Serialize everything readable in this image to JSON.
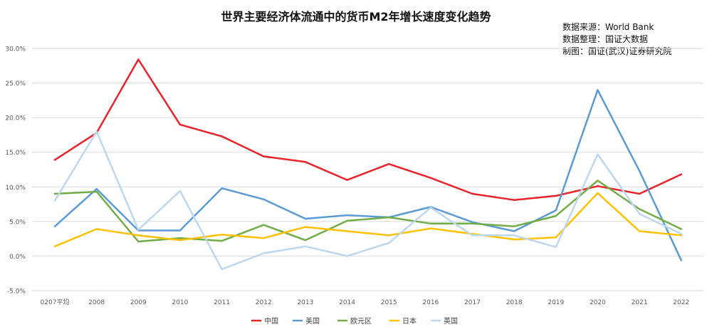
{
  "chart_data": {
    "type": "line",
    "title": "世界主要经济体流通中的货币M2年增长速度变化趋势",
    "notes": [
      "数据来源：World Bank",
      "数据整理：国证大数据",
      "制图：国证(武汉)证券研究院"
    ],
    "categories": [
      "0207平均",
      "2008",
      "2009",
      "2010",
      "2011",
      "2012",
      "2013",
      "2014",
      "2015",
      "2016",
      "2017",
      "2018",
      "2019",
      "2020",
      "2021",
      "2022"
    ],
    "ylim": [
      -5,
      30
    ],
    "yticks": [
      -5,
      0,
      5,
      10,
      15,
      20,
      25,
      30
    ],
    "ytick_labels": [
      "-5.0%",
      "0.0%",
      "5.0%",
      "10.0%",
      "15.0%",
      "20.0%",
      "25.0%",
      "30.0%"
    ],
    "grid": true,
    "legend_position": "bottom",
    "series": [
      {
        "name": "中国",
        "color": "#e8232a",
        "values": [
          13.9,
          17.8,
          28.4,
          19.0,
          17.3,
          14.4,
          13.6,
          11.0,
          13.3,
          11.3,
          9.0,
          8.1,
          8.7,
          10.1,
          9.0,
          11.8
        ]
      },
      {
        "name": "美国",
        "color": "#5b9bd5",
        "values": [
          4.3,
          9.7,
          3.7,
          3.7,
          9.8,
          8.2,
          5.4,
          5.9,
          5.6,
          7.1,
          4.9,
          3.6,
          6.6,
          24.0,
          12.3,
          -0.6
        ]
      },
      {
        "name": "欧元区",
        "color": "#70ad47",
        "values": [
          9.0,
          9.3,
          2.1,
          2.6,
          2.2,
          4.5,
          2.3,
          5.1,
          5.6,
          4.7,
          4.7,
          4.3,
          5.8,
          10.9,
          6.8,
          3.9
        ]
      },
      {
        "name": "日本",
        "color": "#ffc000",
        "values": [
          1.4,
          3.9,
          3.0,
          2.3,
          3.1,
          2.6,
          4.2,
          3.6,
          3.0,
          4.0,
          3.2,
          2.4,
          2.7,
          9.1,
          3.6,
          3.0
        ]
      },
      {
        "name": "英国",
        "color": "#bdd7ee",
        "values": [
          8.0,
          18.0,
          3.8,
          9.4,
          -1.9,
          0.4,
          1.4,
          0.0,
          1.9,
          7.0,
          3.0,
          3.0,
          1.3,
          14.7,
          6.1,
          3.2
        ]
      }
    ]
  }
}
